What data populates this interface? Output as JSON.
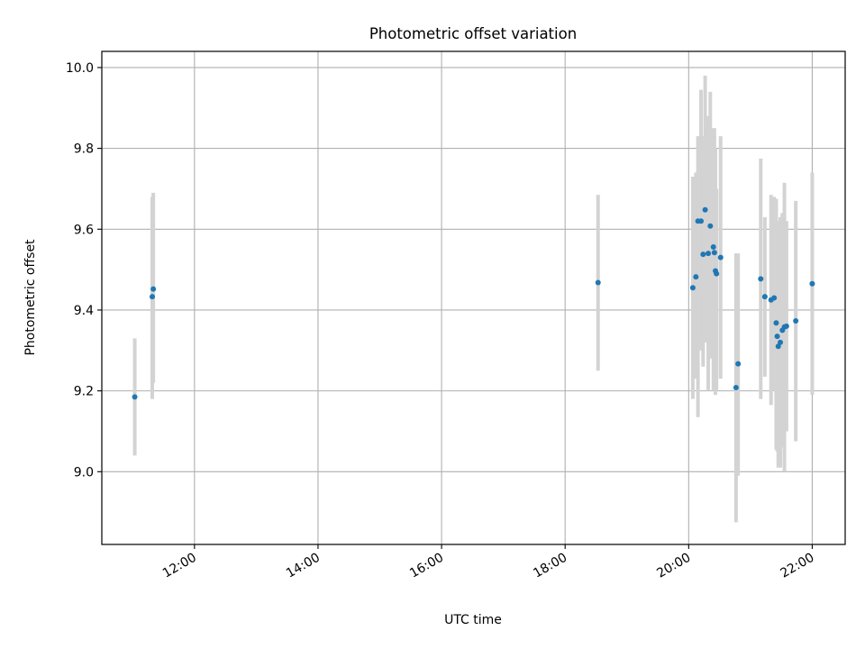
{
  "chart_data": {
    "type": "scatter",
    "title": "Photometric offset variation",
    "xlabel": "UTC time",
    "ylabel": "Photometric offset",
    "x_ticks": [
      "12:00",
      "14:00",
      "16:00",
      "18:00",
      "20:00",
      "22:00"
    ],
    "y_ticks": [
      "9.0",
      "9.2",
      "9.4",
      "9.6",
      "9.8",
      "10.0"
    ],
    "xlim": [
      "10:30",
      "22:32"
    ],
    "ylim": [
      8.82,
      10.04
    ],
    "grid": true,
    "error_bars": true,
    "colors": {
      "point": "#1f77b4",
      "errorbar": "#d3d3d3",
      "grid": "#b0b0b0"
    },
    "points": [
      {
        "t": "11:02",
        "y": 9.185,
        "lo": 9.04,
        "hi": 9.33
      },
      {
        "t": "11:19",
        "y": 9.433,
        "lo": 9.18,
        "hi": 9.68
      },
      {
        "t": "11:20",
        "y": 9.452,
        "lo": 9.22,
        "hi": 9.69
      },
      {
        "t": "18:32",
        "y": 9.468,
        "lo": 9.25,
        "hi": 9.685
      },
      {
        "t": "20:04",
        "y": 9.455,
        "lo": 9.18,
        "hi": 9.73
      },
      {
        "t": "20:07",
        "y": 9.482,
        "lo": 9.23,
        "hi": 9.74
      },
      {
        "t": "20:09",
        "y": 9.62,
        "lo": 9.135,
        "hi": 9.83
      },
      {
        "t": "20:12",
        "y": 9.62,
        "lo": 9.3,
        "hi": 9.945
      },
      {
        "t": "20:14",
        "y": 9.538,
        "lo": 9.26,
        "hi": 9.83
      },
      {
        "t": "20:16",
        "y": 9.648,
        "lo": 9.32,
        "hi": 9.98
      },
      {
        "t": "20:19",
        "y": 9.54,
        "lo": 9.2,
        "hi": 9.88
      },
      {
        "t": "20:21",
        "y": 9.608,
        "lo": 9.28,
        "hi": 9.94
      },
      {
        "t": "20:24",
        "y": 9.556,
        "lo": 9.2,
        "hi": 9.85
      },
      {
        "t": "20:25",
        "y": 9.542,
        "lo": 9.25,
        "hi": 9.85
      },
      {
        "t": "20:26",
        "y": 9.497,
        "lo": 9.19,
        "hi": 9.8
      },
      {
        "t": "20:27",
        "y": 9.49,
        "lo": 9.2,
        "hi": 9.7
      },
      {
        "t": "20:31",
        "y": 9.53,
        "lo": 9.23,
        "hi": 9.83
      },
      {
        "t": "20:46",
        "y": 9.208,
        "lo": 8.875,
        "hi": 9.54
      },
      {
        "t": "20:48",
        "y": 9.267,
        "lo": 8.99,
        "hi": 9.54
      },
      {
        "t": "21:10",
        "y": 9.477,
        "lo": 9.18,
        "hi": 9.775
      },
      {
        "t": "21:14",
        "y": 9.433,
        "lo": 9.235,
        "hi": 9.63
      },
      {
        "t": "21:20",
        "y": 9.425,
        "lo": 9.165,
        "hi": 9.685
      },
      {
        "t": "21:23",
        "y": 9.43,
        "lo": 9.2,
        "hi": 9.68
      },
      {
        "t": "21:25",
        "y": 9.368,
        "lo": 9.055,
        "hi": 9.675
      },
      {
        "t": "21:26",
        "y": 9.335,
        "lo": 9.05,
        "hi": 9.62
      },
      {
        "t": "21:27",
        "y": 9.31,
        "lo": 9.01,
        "hi": 9.61
      },
      {
        "t": "21:29",
        "y": 9.32,
        "lo": 9.01,
        "hi": 9.63
      },
      {
        "t": "21:31",
        "y": 9.35,
        "lo": 9.06,
        "hi": 9.64
      },
      {
        "t": "21:33",
        "y": 9.358,
        "lo": 9.0,
        "hi": 9.715
      },
      {
        "t": "21:35",
        "y": 9.36,
        "lo": 9.1,
        "hi": 9.62
      },
      {
        "t": "21:44",
        "y": 9.373,
        "lo": 9.075,
        "hi": 9.67
      },
      {
        "t": "22:00",
        "y": 9.465,
        "lo": 9.19,
        "hi": 9.74
      }
    ]
  }
}
